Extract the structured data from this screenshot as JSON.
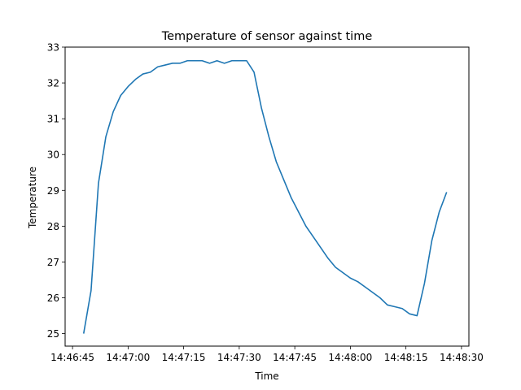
{
  "chart_data": {
    "type": "line",
    "title": "Temperature of sensor against time",
    "xlabel": "Time",
    "ylabel": "Temperature",
    "x_is_time": true,
    "xlim": [
      "14:46:43",
      "14:48:32"
    ],
    "ylim": [
      24.65,
      33
    ],
    "xticks": [
      "14:46:45",
      "14:47:00",
      "14:47:15",
      "14:47:30",
      "14:47:45",
      "14:48:00",
      "14:48:15",
      "14:48:30"
    ],
    "yticks": [
      25,
      26,
      27,
      28,
      29,
      30,
      31,
      32,
      33
    ],
    "grid": false,
    "series": [
      {
        "color": "#1f77b4",
        "x": [
          "14:46:48",
          "14:46:50",
          "14:46:52",
          "14:46:54",
          "14:46:56",
          "14:46:58",
          "14:47:00",
          "14:47:02",
          "14:47:04",
          "14:47:06",
          "14:47:08",
          "14:47:10",
          "14:47:12",
          "14:47:14",
          "14:47:16",
          "14:47:18",
          "14:47:20",
          "14:47:22",
          "14:47:24",
          "14:47:26",
          "14:47:28",
          "14:47:30",
          "14:47:32",
          "14:47:34",
          "14:47:36",
          "14:47:38",
          "14:47:40",
          "14:47:42",
          "14:47:44",
          "14:47:46",
          "14:47:48",
          "14:47:50",
          "14:47:52",
          "14:47:54",
          "14:47:56",
          "14:47:58",
          "14:48:00",
          "14:48:02",
          "14:48:04",
          "14:48:06",
          "14:48:08",
          "14:48:10",
          "14:48:12",
          "14:48:14",
          "14:48:16",
          "14:48:18",
          "14:48:20",
          "14:48:22",
          "14:48:24",
          "14:48:26",
          "14:48:28",
          "14:48:30"
        ],
        "y": [
          25.0,
          26.2,
          29.2,
          30.5,
          31.2,
          31.65,
          31.9,
          32.1,
          32.25,
          32.3,
          32.45,
          32.5,
          32.55,
          32.55,
          32.62,
          32.62,
          32.62,
          32.55,
          32.62,
          32.55,
          32.62,
          32.62,
          32.62,
          32.3,
          31.3,
          30.5,
          29.8,
          29.3,
          28.8,
          28.4,
          28.0,
          27.7,
          27.4,
          27.1,
          26.85,
          26.7,
          26.55,
          26.45,
          26.3,
          26.15,
          26.0,
          25.8,
          25.75,
          25.7,
          25.55,
          25.5,
          26.4,
          27.6,
          28.4,
          28.95,
          null,
          null
        ]
      }
    ]
  }
}
